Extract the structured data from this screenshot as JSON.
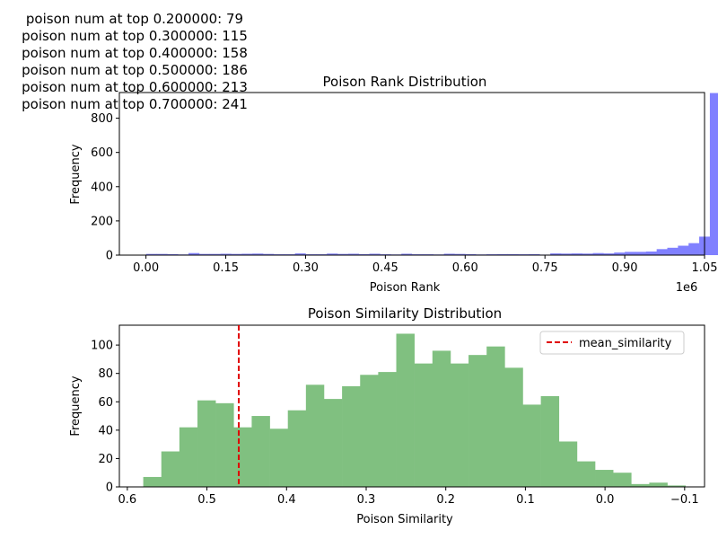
{
  "annotations": [
    "poison num at top 0.200000: 79",
    "poison num at top 0.300000: 115",
    "poison num at top 0.400000: 158",
    "poison num at top 0.500000: 186",
    "poison num at top 0.600000: 213",
    "poison num at top 0.700000: 241"
  ],
  "chart_data": [
    {
      "type": "bar",
      "title": "Poison Rank Distribution",
      "xlabel": "Poison Rank",
      "ylabel": "Frequency",
      "x_offset_label": "1e6",
      "xlim": [
        -0.05,
        1.05
      ],
      "ylim": [
        0,
        950
      ],
      "xticks": [
        0.0,
        0.15,
        0.3,
        0.45,
        0.6,
        0.75,
        0.9,
        1.05
      ],
      "xtick_labels": [
        "0.00",
        "0.15",
        "0.30",
        "0.45",
        "0.60",
        "0.75",
        "0.90",
        "1.05"
      ],
      "yticks": [
        0,
        200,
        400,
        600,
        800
      ],
      "ytick_labels": [
        "0",
        "200",
        "400",
        "600",
        "800"
      ],
      "color": "#8080ff",
      "bin_start": 0.0,
      "bin_width": 0.02,
      "values": [
        7,
        7,
        6,
        4,
        12,
        7,
        7,
        8,
        7,
        8,
        9,
        7,
        5,
        5,
        10,
        5,
        5,
        9,
        7,
        8,
        6,
        8,
        5,
        4,
        8,
        5,
        5,
        4,
        8,
        7,
        6,
        4,
        5,
        6,
        6,
        5,
        6,
        3,
        10,
        9,
        10,
        9,
        12,
        10,
        15,
        19,
        19,
        21,
        35,
        43,
        55,
        70,
        108,
        947
      ],
      "grid": false
    },
    {
      "type": "bar",
      "title": "Poison Similarity Distribution",
      "xlabel": "Poison Similarity",
      "ylabel": "Frequency",
      "x_inverted": true,
      "xlim": [
        0.61,
        -0.125
      ],
      "ylim": [
        0,
        114
      ],
      "xticks": [
        0.6,
        0.5,
        0.4,
        0.3,
        0.2,
        0.1,
        0.0,
        -0.1
      ],
      "xtick_labels": [
        "0.6",
        "0.5",
        "0.4",
        "0.3",
        "0.2",
        "0.1",
        "0.0",
        "−0.1"
      ],
      "yticks": [
        0,
        20,
        40,
        60,
        80,
        100
      ],
      "ytick_labels": [
        "0",
        "20",
        "40",
        "60",
        "80",
        "100"
      ],
      "color": "#80c080",
      "bin_edges": [
        0.58,
        0.5573,
        0.5346,
        0.5119,
        0.4892,
        0.4665,
        0.4438,
        0.4211,
        0.3984,
        0.3757,
        0.353,
        0.3303,
        0.3076,
        0.2849,
        0.2622,
        0.2395,
        0.2168,
        0.1941,
        0.1714,
        0.1487,
        0.126,
        0.1033,
        0.0806,
        0.0579,
        0.0352,
        0.0125,
        -0.0102,
        -0.0329,
        -0.0556,
        -0.0783,
        -0.101
      ],
      "values": [
        7,
        25,
        42,
        61,
        59,
        42,
        50,
        41,
        54,
        72,
        62,
        71,
        79,
        81,
        108,
        87,
        96,
        87,
        93,
        99,
        84,
        58,
        64,
        32,
        18,
        12,
        10,
        2,
        3,
        1
      ],
      "mean_similarity": 0.46,
      "mean_color": "#e00000",
      "legend": {
        "label": "mean_similarity",
        "placement": "top-right"
      },
      "grid": false
    }
  ]
}
